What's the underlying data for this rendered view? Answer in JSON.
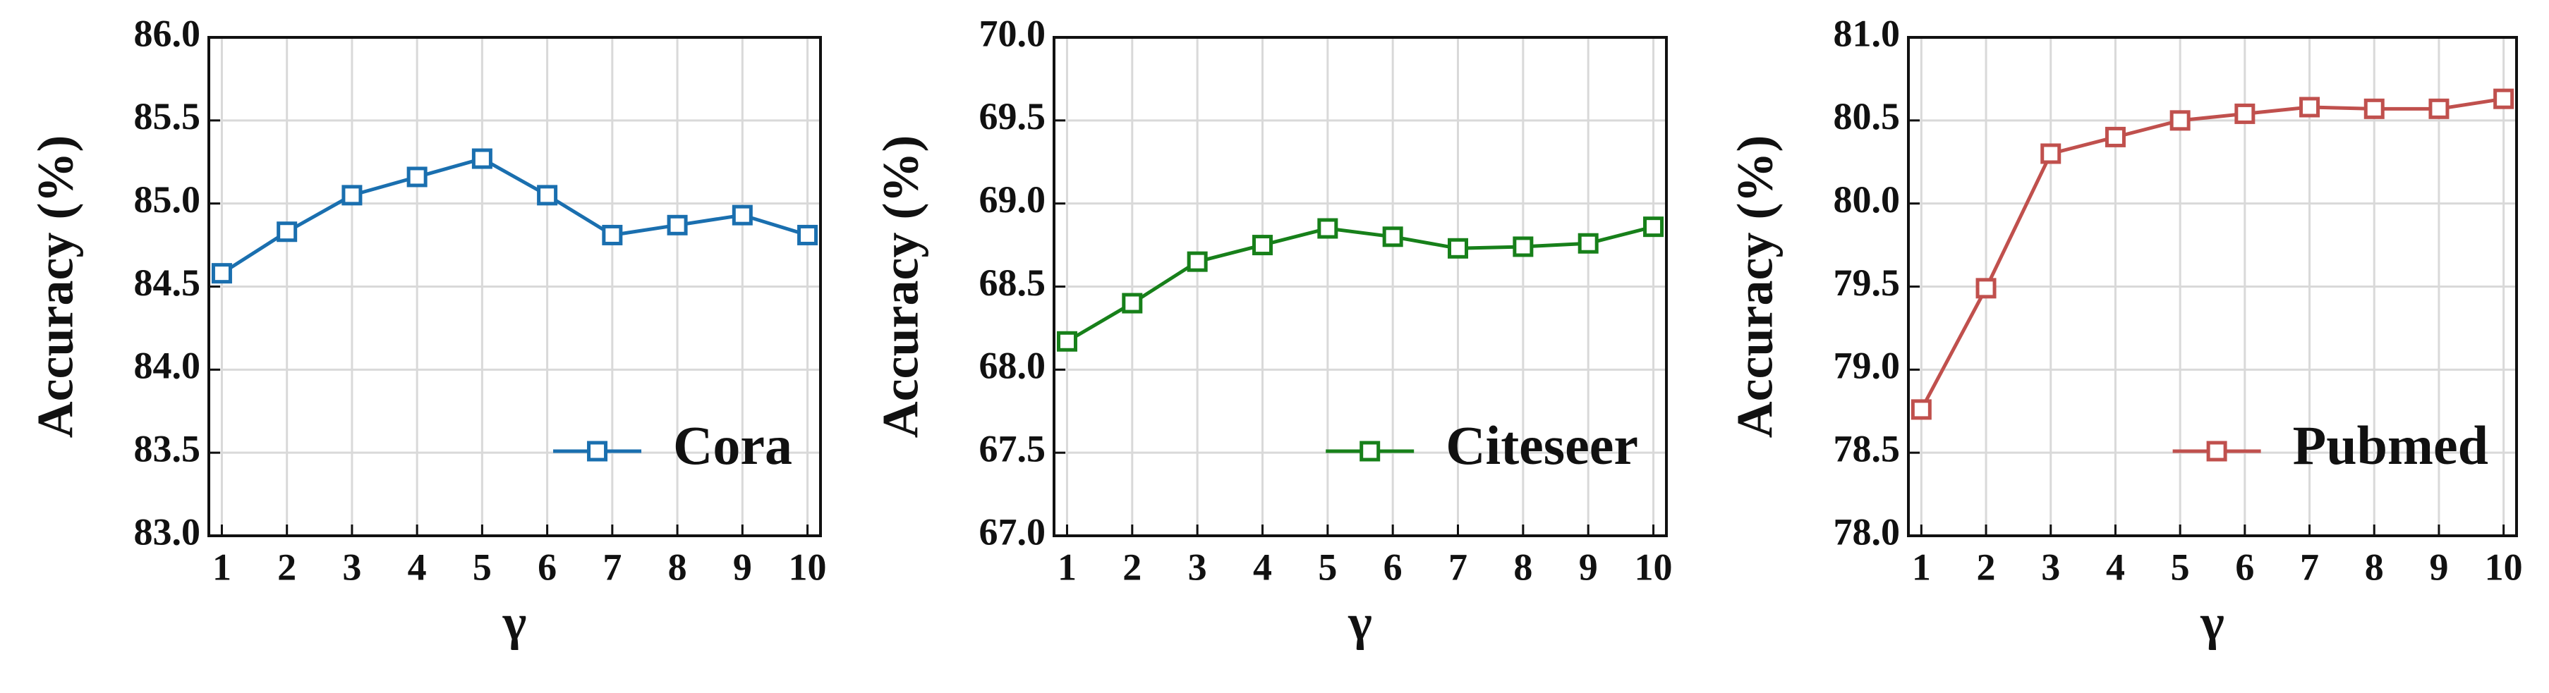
{
  "chart_data": [
    {
      "type": "line",
      "xlabel": "γ",
      "ylabel": "Accuracy (%)",
      "x": [
        1,
        2,
        3,
        4,
        5,
        6,
        7,
        8,
        9,
        10
      ],
      "xlim": [
        0.8,
        10.2
      ],
      "xticks": [
        1,
        2,
        3,
        4,
        5,
        6,
        7,
        8,
        9,
        10
      ],
      "ylim": [
        83,
        86
      ],
      "yticks": [
        {
          "value": 83,
          "label": "83.0"
        },
        {
          "value": 83.5,
          "label": "83.5"
        },
        {
          "value": 84,
          "label": "84.0"
        },
        {
          "value": 84.5,
          "label": "84.5"
        },
        {
          "value": 85,
          "label": "85.0"
        },
        {
          "value": 85.5,
          "label": "85.5"
        },
        {
          "value": 86,
          "label": "86.0"
        }
      ],
      "grid": true,
      "legend": "lower right",
      "marker": "square",
      "series": [
        {
          "name": "Cora",
          "color": "#1a6faf",
          "values": [
            84.58,
            84.83,
            85.05,
            85.16,
            85.27,
            85.05,
            84.81,
            84.87,
            84.93,
            84.81
          ]
        }
      ]
    },
    {
      "type": "line",
      "xlabel": "γ",
      "ylabel": "Accuracy (%)",
      "x": [
        1,
        2,
        3,
        4,
        5,
        6,
        7,
        8,
        9,
        10
      ],
      "xlim": [
        0.8,
        10.2
      ],
      "xticks": [
        1,
        2,
        3,
        4,
        5,
        6,
        7,
        8,
        9,
        10
      ],
      "ylim": [
        67,
        70
      ],
      "yticks": [
        {
          "value": 67,
          "label": "67.0"
        },
        {
          "value": 67.5,
          "label": "67.5"
        },
        {
          "value": 68,
          "label": "68.0"
        },
        {
          "value": 68.5,
          "label": "68.5"
        },
        {
          "value": 69,
          "label": "69.0"
        },
        {
          "value": 69.5,
          "label": "69.5"
        },
        {
          "value": 70,
          "label": "70.0"
        }
      ],
      "grid": true,
      "legend": "lower right",
      "marker": "square",
      "series": [
        {
          "name": "Citeseer",
          "color": "#17801a",
          "values": [
            68.17,
            68.4,
            68.65,
            68.75,
            68.85,
            68.8,
            68.73,
            68.74,
            68.76,
            68.86
          ]
        }
      ]
    },
    {
      "type": "line",
      "xlabel": "γ",
      "ylabel": "Accuracy (%)",
      "x": [
        1,
        2,
        3,
        4,
        5,
        6,
        7,
        8,
        9,
        10
      ],
      "xlim": [
        0.8,
        10.2
      ],
      "xticks": [
        1,
        2,
        3,
        4,
        5,
        6,
        7,
        8,
        9,
        10
      ],
      "ylim": [
        78,
        81
      ],
      "yticks": [
        {
          "value": 78,
          "label": "78.0"
        },
        {
          "value": 78.5,
          "label": "78.5"
        },
        {
          "value": 79,
          "label": "79.0"
        },
        {
          "value": 79.5,
          "label": "79.5"
        },
        {
          "value": 80,
          "label": "80.0"
        },
        {
          "value": 80.5,
          "label": "80.5"
        },
        {
          "value": 81,
          "label": "81.0"
        }
      ],
      "grid": true,
      "legend": "lower right",
      "marker": "square",
      "series": [
        {
          "name": "Pubmed",
          "color": "#c0504d",
          "values": [
            78.76,
            79.49,
            80.3,
            80.4,
            80.5,
            80.54,
            80.58,
            80.57,
            80.57,
            80.63
          ]
        }
      ]
    }
  ]
}
